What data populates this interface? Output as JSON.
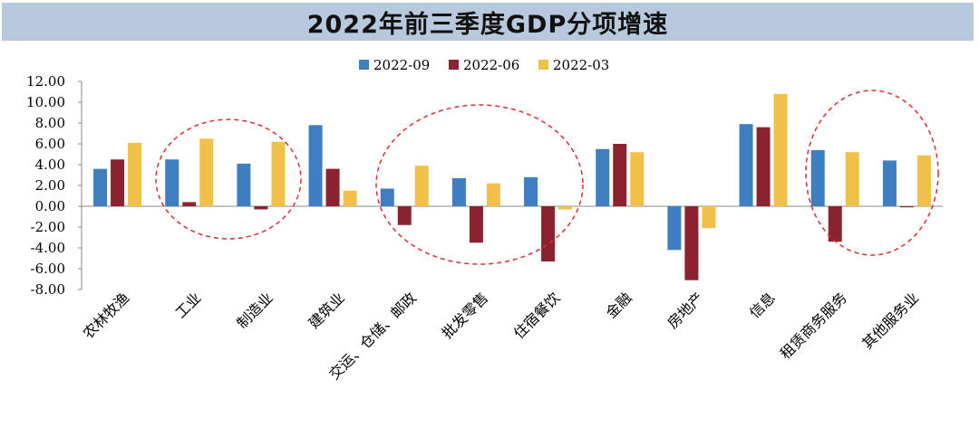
{
  "header": {
    "title": "2022年前三季度GDP分项增速"
  },
  "chart_data": {
    "type": "bar",
    "title": "2022年前三季度GDP分项增速",
    "xlabel": "",
    "ylabel": "",
    "ylim": [
      -8,
      12
    ],
    "yticks": [
      "12.00",
      "10.00",
      "8.00",
      "6.00",
      "4.00",
      "2.00",
      "0.00",
      "-2.00",
      "-4.00",
      "-6.00",
      "-8.00"
    ],
    "legend_position": "top",
    "grid": false,
    "categories": [
      "农林牧渔",
      "工业",
      "制造业",
      "建筑业",
      "交运、仓储、邮政",
      "批发零售",
      "住宿餐饮",
      "金融",
      "房地产",
      "信息",
      "租赁商务服务",
      "其他服务业"
    ],
    "series": [
      {
        "name": "2022-09",
        "color": "#3f7ec0",
        "values": [
          3.6,
          4.5,
          4.1,
          7.8,
          1.7,
          2.7,
          2.8,
          5.5,
          -4.2,
          7.9,
          5.4,
          4.4
        ]
      },
      {
        "name": "2022-06",
        "color": "#8b2230",
        "values": [
          4.5,
          0.4,
          -0.3,
          3.6,
          -1.8,
          -3.5,
          -5.3,
          6.0,
          -7.1,
          7.6,
          -3.4,
          -0.1
        ]
      },
      {
        "name": "2022-03",
        "color": "#f1c04a",
        "values": [
          6.1,
          6.5,
          6.2,
          1.5,
          3.9,
          2.2,
          -0.3,
          5.2,
          -2.1,
          10.8,
          5.2,
          4.9
        ]
      }
    ]
  }
}
